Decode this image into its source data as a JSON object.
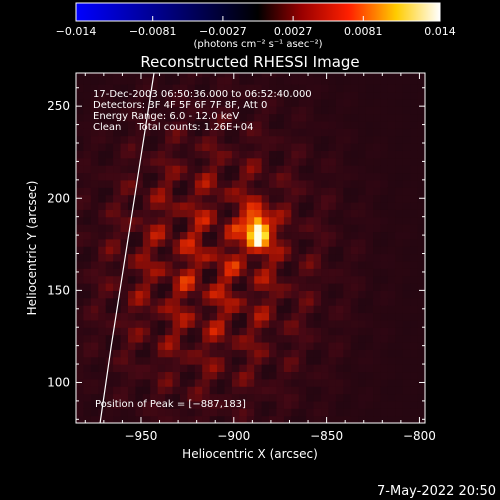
{
  "chart_data": {
    "type": "heatmap",
    "title": "Reconstructed RHESSI Image",
    "xlabel": "Heliocentric X (arcsec)",
    "ylabel": "Heliocentric Y (arcsec)",
    "xlim": [
      -985,
      -797
    ],
    "ylim": [
      78,
      268
    ],
    "x_ticks": [
      -950,
      -900,
      -850,
      -800
    ],
    "x_tick_labels": [
      "−950",
      "−900",
      "−850",
      "−800"
    ],
    "y_ticks": [
      100,
      150,
      200,
      250
    ],
    "y_tick_labels": [
      "100",
      "150",
      "200",
      "250"
    ],
    "colorbar": {
      "range": [
        -0.014,
        0.014
      ],
      "ticks": [
        -0.014,
        -0.0081,
        -0.0027,
        0.0027,
        0.0081,
        0.014
      ],
      "tick_labels": [
        "−0.014",
        "−0.0081",
        "−0.0027",
        "0.0027",
        "0.0081",
        "0.014"
      ],
      "label": "(photons cm⁻² s⁻¹ asec⁻²)",
      "colormap": [
        "#0000ff",
        "#000000",
        "#ff0000",
        "#ffff00",
        "#ffffff"
      ]
    },
    "peak": {
      "x": -887,
      "y": 183,
      "value": 0.014
    },
    "limb_curve": [
      [
        -972,
        78
      ],
      [
        -966,
        120
      ],
      [
        -959,
        165
      ],
      [
        -952,
        210
      ],
      [
        -943,
        268
      ]
    ],
    "annotations": [
      "17-Dec-2003 06:50:36.000 to 06:52:40.000",
      "Detectors: 3F 4F 5F 6F 7F 8F, Att 0",
      "Energy Range: 6.0 - 12.0 keV",
      "Clean     Total counts: 1.26E+04"
    ],
    "peak_label": "Position of Peak = [−887,183]"
  },
  "footer": {
    "date": "7-May-2022 20:50"
  }
}
